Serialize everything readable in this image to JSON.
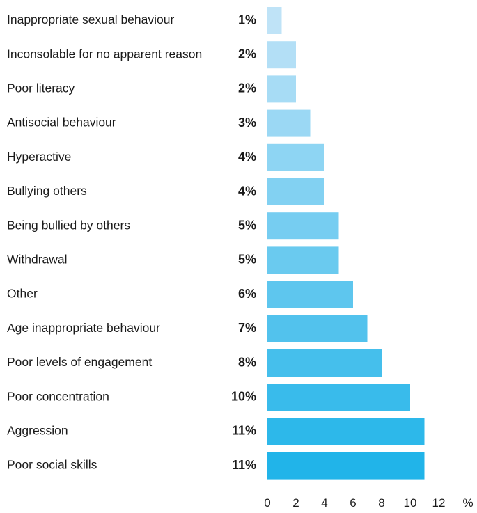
{
  "chart_data": {
    "type": "bar",
    "orientation": "horizontal",
    "categories": [
      "Inappropriate sexual behaviour",
      "Inconsolable for no apparent reason",
      "Poor literacy",
      "Antisocial behaviour",
      "Hyperactive",
      "Bullying others",
      "Being bullied by others",
      "Withdrawal",
      "Other",
      "Age inappropriate behaviour",
      "Poor levels of engagement",
      "Poor concentration",
      "Aggression",
      "Poor social skills"
    ],
    "values": [
      1,
      2,
      2,
      3,
      4,
      4,
      5,
      5,
      6,
      7,
      8,
      10,
      11,
      11
    ],
    "value_labels": [
      "1%",
      "2%",
      "2%",
      "3%",
      "4%",
      "4%",
      "5%",
      "5%",
      "6%",
      "7%",
      "8%",
      "10%",
      "11%",
      "11%"
    ],
    "xticks": [
      "0",
      "2",
      "4",
      "6",
      "8",
      "10",
      "12"
    ],
    "xunit": "%",
    "xlim": [
      0,
      12
    ],
    "grid": false,
    "legend": "none",
    "colors": {
      "bar_light": "#bfe3f7",
      "bar_dark": "#21b4e9",
      "text": "#1a1a1a"
    }
  }
}
